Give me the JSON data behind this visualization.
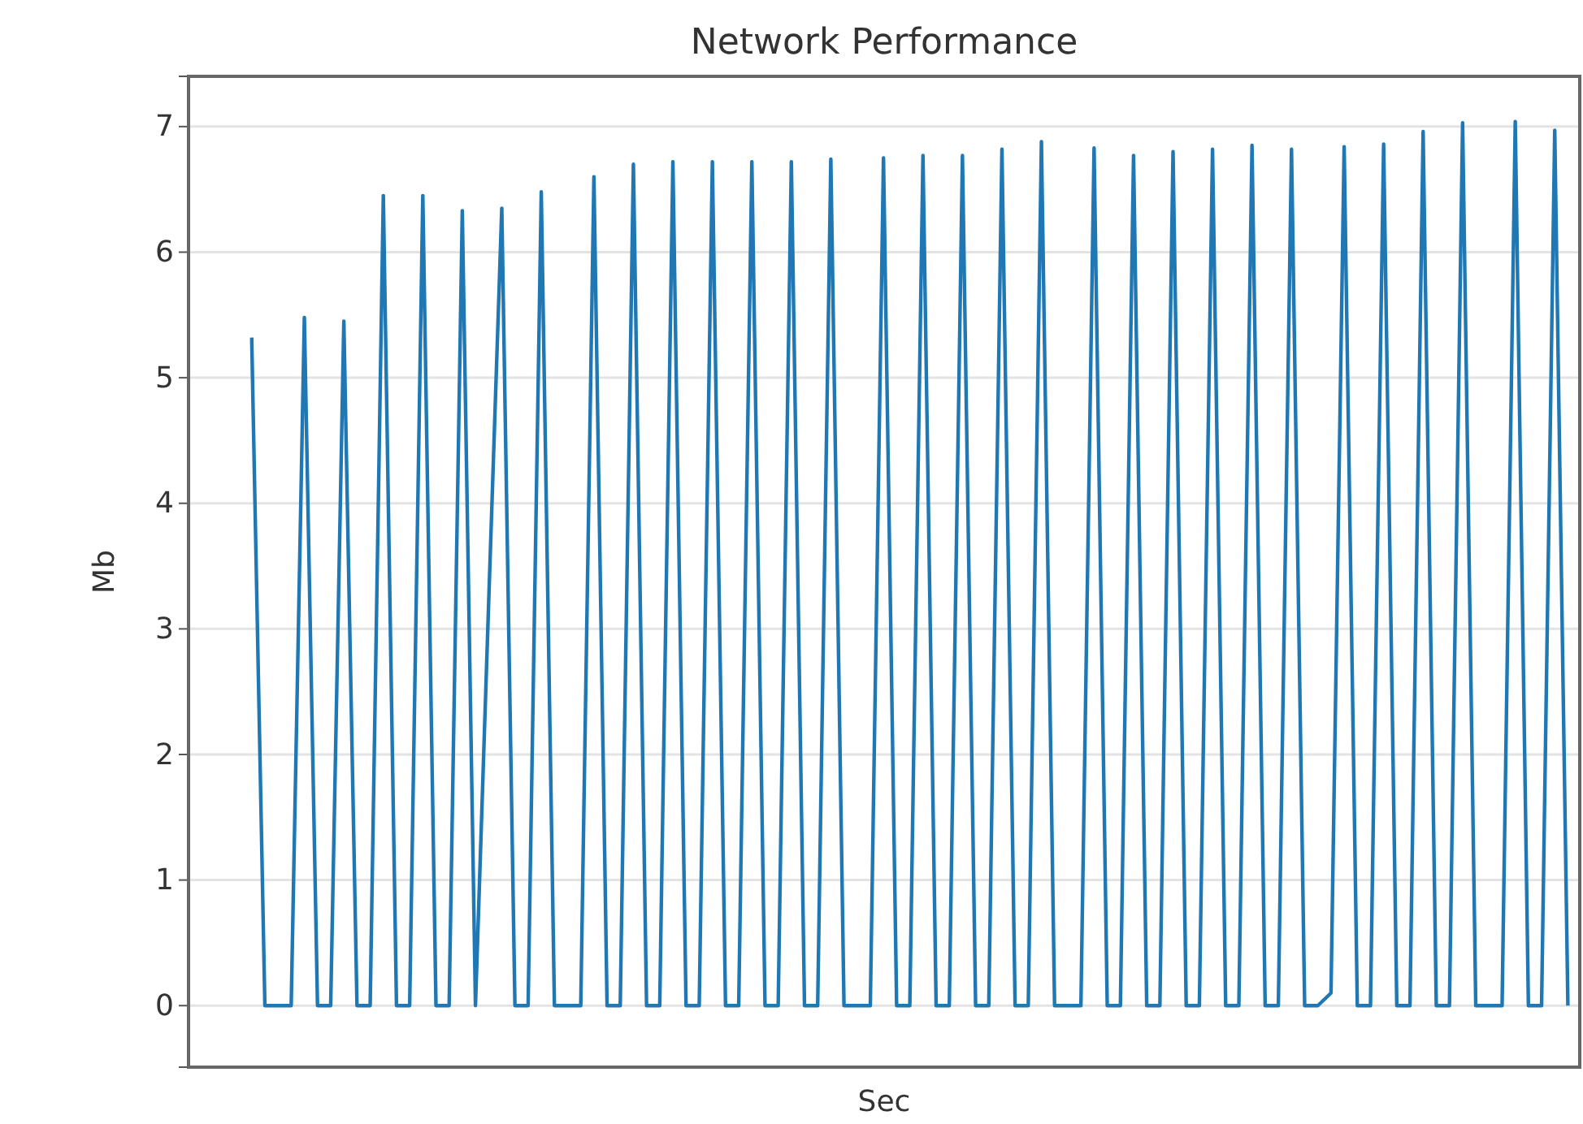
{
  "chart_data": {
    "type": "line",
    "title": "Network Performance",
    "xlabel": "Sec",
    "ylabel": "Mb",
    "categories": [
      null,
      null,
      null,
      null,
      null,
      null,
      null,
      null,
      null,
      null,
      null,
      null,
      null,
      null,
      null,
      null,
      null,
      null,
      null,
      null,
      null,
      null,
      null,
      null,
      null,
      null,
      null,
      null,
      null,
      null,
      null,
      null,
      null,
      null,
      null,
      null,
      null,
      null,
      null,
      null,
      null,
      null,
      null,
      null,
      null,
      null,
      null,
      null,
      null,
      null,
      null,
      null,
      null,
      null,
      null,
      null,
      null,
      null,
      null,
      null,
      null,
      null,
      null,
      null,
      null,
      null,
      null,
      null,
      null,
      null,
      null,
      null,
      null,
      null,
      null,
      null,
      null,
      null,
      null,
      null,
      null,
      null,
      null,
      null,
      null,
      null,
      null,
      null,
      null,
      null,
      null,
      null,
      null,
      null,
      null,
      null,
      null,
      null,
      null,
      null,
      null
    ],
    "series": [
      {
        "color": "#1f77b4",
        "values": [
          5.32,
          0,
          0,
          0,
          5.48,
          0,
          0,
          5.45,
          0,
          0,
          6.45,
          0,
          0,
          6.45,
          0,
          0,
          6.33,
          0,
          3.2,
          6.35,
          0,
          0,
          6.48,
          0,
          0,
          0,
          6.6,
          0,
          0,
          6.7,
          0,
          0,
          6.72,
          0,
          0,
          6.72,
          0,
          0,
          6.72,
          0,
          0,
          6.72,
          0,
          0,
          6.74,
          0,
          0,
          0,
          6.75,
          0,
          0,
          6.77,
          0,
          0,
          6.77,
          0,
          0,
          6.82,
          0,
          0,
          6.88,
          0,
          0,
          0,
          6.83,
          0,
          0,
          6.77,
          0,
          0,
          6.8,
          0,
          0,
          6.82,
          0,
          0,
          6.85,
          0,
          0,
          6.82,
          0,
          0,
          0.1,
          6.84,
          0,
          0,
          6.86,
          0,
          0,
          6.96,
          0,
          0,
          7.03,
          0,
          0,
          0,
          7.04,
          0,
          0,
          6.97,
          0
        ]
      }
    ],
    "ylim": [
      -0.49,
      7.4
    ],
    "yticks": [
      0,
      1,
      2,
      3,
      4,
      5,
      6,
      7
    ],
    "grid": true,
    "tick_labels": "y",
    "marker": "none",
    "line_style": "solid"
  }
}
